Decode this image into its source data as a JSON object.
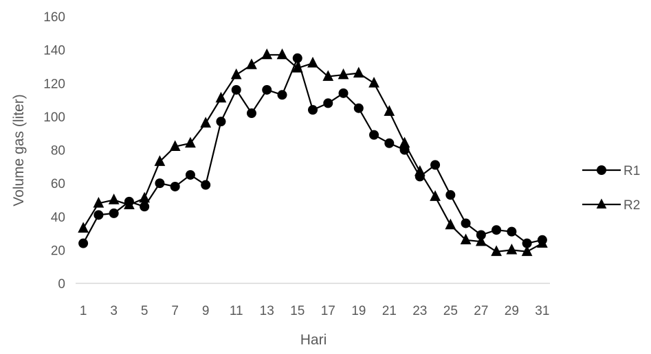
{
  "chart_data": {
    "type": "line",
    "title": "",
    "xlabel": "Hari",
    "ylabel": "Volume gas (liter)",
    "ylim": [
      0,
      160
    ],
    "yticks": [
      0,
      20,
      40,
      60,
      80,
      100,
      120,
      140,
      160
    ],
    "x": [
      1,
      2,
      3,
      4,
      5,
      6,
      7,
      8,
      9,
      10,
      11,
      12,
      13,
      14,
      15,
      16,
      17,
      18,
      19,
      20,
      21,
      22,
      23,
      24,
      25,
      26,
      27,
      28,
      29,
      30,
      31
    ],
    "xtick_labels": [
      "1",
      "3",
      "5",
      "7",
      "9",
      "11",
      "13",
      "15",
      "17",
      "19",
      "21",
      "23",
      "25",
      "27",
      "29",
      "31"
    ],
    "grid": false,
    "legend_position": "right",
    "series": [
      {
        "name": "R1",
        "marker": "circle",
        "color": "#000000",
        "values": [
          24,
          41,
          42,
          49,
          46,
          60,
          58,
          65,
          59,
          97,
          116,
          102,
          116,
          113,
          135,
          104,
          108,
          114,
          105,
          89,
          84,
          80,
          64,
          71,
          53,
          36,
          29,
          32,
          31,
          24,
          26
        ]
      },
      {
        "name": "R2",
        "marker": "triangle",
        "color": "#000000",
        "values": [
          33,
          48,
          50,
          47,
          51,
          73,
          82,
          84,
          96,
          111,
          125,
          131,
          137,
          137,
          129,
          132,
          124,
          125,
          126,
          120,
          103,
          84,
          67,
          52,
          35,
          26,
          25,
          19,
          20,
          19,
          24
        ]
      }
    ]
  }
}
